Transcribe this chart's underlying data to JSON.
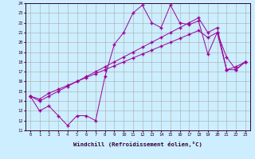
{
  "xlabel": "Windchill (Refroidissement éolien,°C)",
  "background_color": "#cceeff",
  "grid_color": "#aaaaaa",
  "line_color": "#990099",
  "xlim": [
    -0.5,
    23.5
  ],
  "ylim": [
    11,
    24
  ],
  "xticks": [
    0,
    1,
    2,
    3,
    4,
    5,
    6,
    7,
    8,
    9,
    10,
    11,
    12,
    13,
    14,
    15,
    16,
    17,
    18,
    19,
    20,
    21,
    22,
    23
  ],
  "yticks": [
    11,
    12,
    13,
    14,
    15,
    16,
    17,
    18,
    19,
    20,
    21,
    22,
    23,
    24
  ],
  "series": [
    [
      14.5,
      13.0,
      13.5,
      12.5,
      11.5,
      12.5,
      12.5,
      12.0,
      16.5,
      19.8,
      21.0,
      23.0,
      23.8,
      22.0,
      21.5,
      23.8,
      22.0,
      21.8,
      22.2,
      18.8,
      21.0,
      18.5,
      17.2,
      18.0
    ],
    [
      14.5,
      14.0,
      14.5,
      15.0,
      15.5,
      16.0,
      16.5,
      17.0,
      17.5,
      18.0,
      18.5,
      19.0,
      19.5,
      20.0,
      20.5,
      21.0,
      21.5,
      22.0,
      22.5,
      21.0,
      21.5,
      17.2,
      17.2,
      18.0
    ],
    [
      14.5,
      14.2,
      14.8,
      15.2,
      15.6,
      16.0,
      16.4,
      16.8,
      17.2,
      17.6,
      18.0,
      18.4,
      18.8,
      19.2,
      19.6,
      20.0,
      20.4,
      20.8,
      21.2,
      20.5,
      21.0,
      17.2,
      17.5,
      18.0
    ]
  ]
}
